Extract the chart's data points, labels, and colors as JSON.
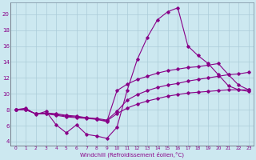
{
  "xlabel": "Windchill (Refroidissement éolien,°C)",
  "background_color": "#cce8f0",
  "line_color": "#880088",
  "xlim": [
    -0.5,
    23.5
  ],
  "ylim": [
    3.5,
    21.5
  ],
  "yticks": [
    4,
    6,
    8,
    10,
    12,
    14,
    16,
    18,
    20
  ],
  "xticks": [
    0,
    1,
    2,
    3,
    4,
    5,
    6,
    7,
    8,
    9,
    10,
    11,
    12,
    13,
    14,
    15,
    16,
    17,
    18,
    19,
    20,
    21,
    22,
    23
  ],
  "series": [
    {
      "x": [
        0,
        1,
        2,
        3,
        4,
        5,
        6,
        7,
        8,
        9,
        10,
        11,
        12,
        13,
        14,
        15,
        16,
        17,
        18,
        19,
        20,
        21,
        22,
        23
      ],
      "y": [
        8.0,
        8.2,
        7.4,
        7.8,
        6.1,
        5.1,
        6.1,
        4.9,
        4.7,
        4.4,
        5.8,
        10.4,
        14.3,
        17.1,
        19.3,
        20.3,
        20.8,
        16.0,
        14.8,
        13.8,
        12.4,
        11.0,
        10.5,
        10.3
      ]
    },
    {
      "x": [
        0,
        1,
        2,
        3,
        4,
        5,
        6,
        7,
        8,
        9,
        10,
        11,
        12,
        13,
        14,
        15,
        16,
        17,
        18,
        19,
        20,
        21,
        22,
        23
      ],
      "y": [
        8.0,
        8.0,
        7.5,
        7.6,
        7.5,
        7.3,
        7.2,
        7.0,
        6.8,
        6.5,
        10.4,
        11.2,
        11.8,
        12.2,
        12.6,
        12.9,
        13.1,
        13.3,
        13.4,
        13.6,
        13.8,
        12.4,
        11.1,
        10.5
      ]
    },
    {
      "x": [
        0,
        1,
        2,
        3,
        4,
        5,
        6,
        7,
        8,
        9,
        10,
        11,
        12,
        13,
        14,
        15,
        16,
        17,
        18,
        19,
        20,
        21,
        22,
        23
      ],
      "y": [
        8.0,
        8.0,
        7.5,
        7.5,
        7.4,
        7.2,
        7.1,
        7.0,
        6.9,
        6.7,
        7.8,
        9.2,
        9.9,
        10.4,
        10.8,
        11.1,
        11.3,
        11.6,
        11.8,
        12.0,
        12.2,
        12.4,
        12.5,
        12.7
      ]
    },
    {
      "x": [
        0,
        1,
        2,
        3,
        4,
        5,
        6,
        7,
        8,
        9,
        10,
        11,
        12,
        13,
        14,
        15,
        16,
        17,
        18,
        19,
        20,
        21,
        22,
        23
      ],
      "y": [
        8.0,
        8.0,
        7.5,
        7.5,
        7.3,
        7.1,
        7.0,
        6.9,
        6.8,
        6.6,
        7.5,
        8.2,
        8.7,
        9.1,
        9.4,
        9.7,
        9.9,
        10.1,
        10.2,
        10.3,
        10.4,
        10.5,
        10.5,
        10.5
      ]
    }
  ]
}
